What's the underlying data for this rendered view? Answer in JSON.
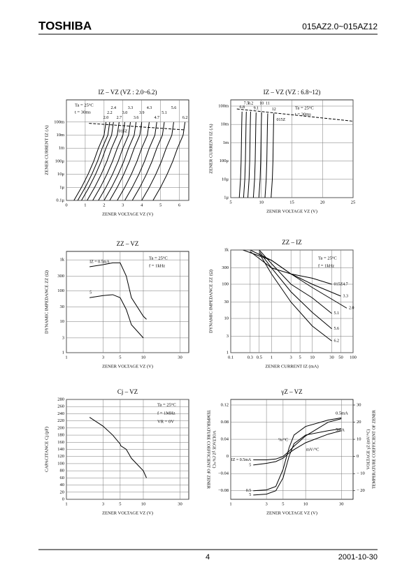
{
  "header": {
    "brand": "TOSHIBA",
    "model": "015AZ2.0~015AZ12"
  },
  "footer": {
    "page": "4",
    "date": "2001-10-30"
  },
  "chart_data": [
    {
      "type": "line",
      "title": "IZ – VZ  (VZ : 2.0~6.2)",
      "xlabel": "ZENER VOLTAGE  VZ  (V)",
      "ylabel": "ZENER CURRENT  IZ  (A)",
      "xlim": [
        0,
        6.5
      ],
      "ylim": [
        1e-07,
        5
      ],
      "ylog": true,
      "grid": true,
      "color": "#000000",
      "xticks": [
        0,
        1,
        2,
        3,
        4,
        5,
        6
      ],
      "yticks": [
        {
          "value": 1e-07,
          "label": "0.1μ"
        },
        {
          "value": 1e-06,
          "label": "1μ"
        },
        {
          "value": 1e-05,
          "label": "10μ"
        },
        {
          "value": 0.0001,
          "label": "100μ"
        },
        {
          "value": 0.001,
          "label": "1m"
        },
        {
          "value": 0.01,
          "label": "10m"
        },
        {
          "value": 0.1,
          "label": "100m"
        }
      ],
      "notes": [
        "Ta = 25°C",
        "t = 30ms"
      ],
      "series": [
        {
          "name": "2.0",
          "x": [
            0.4,
            0.8,
            1.15,
            1.45,
            1.7,
            2.0,
            2.1
          ],
          "values": [
            1e-07,
            1e-06,
            1e-05,
            0.0001,
            0.001,
            0.01,
            0.1
          ]
        },
        {
          "name": "2.2",
          "x": [
            0.6,
            1.0,
            1.35,
            1.65,
            1.9,
            2.2,
            2.3
          ],
          "values": [
            1e-07,
            1e-06,
            1e-05,
            0.0001,
            0.001,
            0.01,
            0.1
          ]
        },
        {
          "name": "2.4",
          "x": [
            0.8,
            1.2,
            1.55,
            1.85,
            2.1,
            2.4,
            2.5
          ],
          "values": [
            1e-07,
            1e-06,
            1e-05,
            0.0001,
            0.001,
            0.01,
            0.1
          ]
        },
        {
          "name": "2.7",
          "x": [
            1.1,
            1.5,
            1.85,
            2.15,
            2.4,
            2.7,
            2.8
          ],
          "values": [
            1e-07,
            1e-06,
            1e-05,
            0.0001,
            0.001,
            0.01,
            0.1
          ]
        },
        {
          "name": "3.0",
          "x": [
            1.4,
            1.8,
            2.15,
            2.45,
            2.7,
            3.0,
            3.1
          ],
          "values": [
            1e-07,
            1e-06,
            1e-05,
            0.0001,
            0.001,
            0.01,
            0.1
          ]
        },
        {
          "name": "3.3",
          "x": [
            1.7,
            2.1,
            2.45,
            2.75,
            3.0,
            3.3,
            3.4
          ],
          "values": [
            1e-07,
            1e-06,
            1e-05,
            0.0001,
            0.001,
            0.01,
            0.1
          ]
        },
        {
          "name": "3.6",
          "x": [
            2.0,
            2.4,
            2.75,
            3.05,
            3.3,
            3.6,
            3.7
          ],
          "values": [
            1e-07,
            1e-06,
            1e-05,
            0.0001,
            0.001,
            0.01,
            0.1
          ]
        },
        {
          "name": "3.9",
          "x": [
            2.3,
            2.7,
            3.05,
            3.35,
            3.6,
            3.9,
            4.0
          ],
          "values": [
            1e-07,
            1e-06,
            1e-05,
            0.0001,
            0.001,
            0.01,
            0.1
          ]
        },
        {
          "name": "4.3",
          "x": [
            2.7,
            3.1,
            3.45,
            3.75,
            4.0,
            4.3,
            4.4
          ],
          "values": [
            1e-07,
            1e-06,
            1e-05,
            0.0001,
            0.001,
            0.01,
            0.1
          ]
        },
        {
          "name": "4.7",
          "x": [
            3.1,
            3.5,
            3.85,
            4.15,
            4.4,
            4.7,
            4.8
          ],
          "values": [
            1e-07,
            1e-06,
            1e-05,
            0.0001,
            0.001,
            0.01,
            0.1
          ]
        },
        {
          "name": "5.1",
          "x": [
            3.5,
            3.9,
            4.25,
            4.55,
            4.8,
            5.1,
            5.2
          ],
          "values": [
            1e-07,
            1e-06,
            1e-05,
            0.0001,
            0.001,
            0.01,
            0.1
          ]
        },
        {
          "name": "5.6",
          "x": [
            4.0,
            4.4,
            4.75,
            5.05,
            5.3,
            5.6,
            5.7
          ],
          "values": [
            1e-07,
            1e-06,
            1e-05,
            0.0001,
            0.001,
            0.01,
            0.1
          ]
        },
        {
          "name": "6.2",
          "x": [
            4.6,
            5.0,
            5.35,
            5.65,
            5.9,
            6.2,
            6.3
          ],
          "values": [
            1e-07,
            1e-06,
            1e-05,
            0.0001,
            0.001,
            0.01,
            0.1
          ]
        },
        {
          "name": "015Z",
          "dashed": true,
          "x": [
            1.2,
            6.3
          ],
          "values": [
            0.08,
            0.025
          ]
        }
      ]
    },
    {
      "type": "line",
      "title": "IZ – VZ  (VZ : 6.8~12)",
      "xlabel": "ZENER VOLTAGE  VZ  (V)",
      "ylabel": "ZENER CURRENT  IZ  (A)",
      "xlim": [
        5,
        25
      ],
      "ylim": [
        1e-06,
        0.22
      ],
      "ylog": true,
      "grid": true,
      "color": "#000000",
      "xticks": [
        5,
        10,
        15,
        20,
        25
      ],
      "yticks": [
        {
          "value": 1e-06,
          "label": "1μ"
        },
        {
          "value": 1e-05,
          "label": "10μ"
        },
        {
          "value": 0.0001,
          "label": "100μ"
        },
        {
          "value": 0.001,
          "label": "1m"
        },
        {
          "value": 0.01,
          "label": "10m"
        },
        {
          "value": 0.1,
          "label": "100m"
        }
      ],
      "notes": [
        "Ta = 25°C",
        "t = 30ms"
      ],
      "series": [
        {
          "name": "6.8",
          "x": [
            6.4,
            6.6,
            6.7,
            6.75,
            6.8,
            6.85
          ],
          "values": [
            1e-06,
            1e-05,
            0.0001,
            0.001,
            0.01,
            0.05
          ]
        },
        {
          "name": "7.5",
          "x": [
            7.1,
            7.3,
            7.4,
            7.45,
            7.5,
            7.55
          ],
          "values": [
            1e-06,
            1e-05,
            0.0001,
            0.001,
            0.01,
            0.05
          ]
        },
        {
          "name": "8.2",
          "x": [
            7.8,
            8.0,
            8.1,
            8.15,
            8.2,
            8.25
          ],
          "values": [
            1e-06,
            1e-05,
            0.0001,
            0.001,
            0.01,
            0.05
          ]
        },
        {
          "name": "9.1",
          "x": [
            8.7,
            8.9,
            9.0,
            9.05,
            9.1,
            9.15
          ],
          "values": [
            1e-06,
            1e-05,
            0.0001,
            0.001,
            0.01,
            0.045
          ]
        },
        {
          "name": "10",
          "x": [
            9.6,
            9.8,
            9.9,
            9.95,
            10,
            10.05
          ],
          "values": [
            1e-06,
            1e-05,
            0.0001,
            0.001,
            0.01,
            0.045
          ]
        },
        {
          "name": "11",
          "x": [
            10.6,
            10.8,
            10.9,
            10.95,
            11,
            11.05
          ],
          "values": [
            1e-06,
            1e-05,
            0.0001,
            0.001,
            0.01,
            0.04
          ]
        },
        {
          "name": "12",
          "x": [
            11.6,
            11.8,
            11.9,
            11.95,
            12,
            12.05
          ],
          "values": [
            1e-06,
            1e-05,
            0.0001,
            0.001,
            0.01,
            0.04
          ]
        },
        {
          "name": "015Z",
          "dashed": true,
          "x": [
            6,
            25
          ],
          "values": [
            0.07,
            0.015
          ]
        }
      ]
    },
    {
      "type": "line",
      "title": "ZZ – VZ",
      "xlabel": "ZENER VOLTAGE  VZ  (V)",
      "ylabel": "DYNAMIC IMPEDANCE  ZZ  (Ω)",
      "xlim": [
        1,
        39
      ],
      "xlog": true,
      "ylim": [
        1,
        1880
      ],
      "ylog": true,
      "grid": true,
      "color": "#000000",
      "xticks": [
        1,
        3,
        5,
        10,
        30
      ],
      "yticks": [
        1,
        3,
        10,
        30,
        100,
        300,
        {
          "value": 1000,
          "label": "1k"
        }
      ],
      "notes": [
        "Ta = 25°C",
        "f = 1kHz"
      ],
      "series": [
        {
          "name": "IZ = 0.5mA",
          "x": [
            2,
            3,
            4,
            5,
            6,
            7,
            10,
            11
          ],
          "values": [
            600,
            700,
            800,
            800,
            300,
            60,
            15,
            12
          ]
        },
        {
          "name": "5",
          "x": [
            2,
            3,
            4,
            5,
            6,
            7,
            10
          ],
          "values": [
            60,
            70,
            75,
            60,
            25,
            8,
            3
          ]
        }
      ]
    },
    {
      "type": "line",
      "title": "ZZ – IZ",
      "xlabel": "ZENER CURRENT  IZ  (mA)",
      "ylabel": "DYNAMIC IMPEDANCE  ZZ  (Ω)",
      "xlim": [
        0.1,
        100
      ],
      "xlog": true,
      "ylim": [
        1,
        1000
      ],
      "ylog": true,
      "grid": true,
      "color": "#000000",
      "xticks": [
        0.1,
        0.3,
        0.5,
        1,
        3,
        5,
        10,
        30,
        50,
        100
      ],
      "yticks": [
        1,
        3,
        10,
        30,
        100,
        300,
        {
          "value": 1000,
          "label": "1k"
        }
      ],
      "notes": [
        "Ta = 25°C",
        "f = 1kHz"
      ],
      "series": [
        {
          "name": "015Z4.7",
          "x": [
            0.3,
            1,
            3,
            10,
            30
          ],
          "values": [
            900,
            300,
            200,
            150,
            100
          ]
        },
        {
          "name": "3.3",
          "x": [
            0.3,
            1,
            3,
            10,
            50
          ],
          "values": [
            1000,
            500,
            200,
            100,
            45
          ]
        },
        {
          "name": "2.0",
          "x": [
            0.2,
            1,
            3,
            10,
            70
          ],
          "values": [
            1000,
            500,
            200,
            80,
            20
          ]
        },
        {
          "name": "5.1",
          "x": [
            0.5,
            1,
            3,
            10,
            30
          ],
          "values": [
            1000,
            400,
            100,
            40,
            14
          ]
        },
        {
          "name": "5.6",
          "x": [
            0.5,
            1,
            3,
            10,
            30
          ],
          "values": [
            900,
            300,
            60,
            15,
            5
          ]
        },
        {
          "name": "6.2",
          "x": [
            0.5,
            1,
            3,
            10,
            30
          ],
          "values": [
            800,
            200,
            30,
            6,
            2.2
          ]
        }
      ]
    },
    {
      "type": "line",
      "title": "Cj – VZ",
      "xlabel": "ZENER VOLTAGE  VZ  (V)",
      "ylabel": "CAPACITANCE  Cj  (pF)",
      "xlim": [
        1,
        39
      ],
      "xlog": true,
      "ylim": [
        0,
        280
      ],
      "grid": true,
      "color": "#000000",
      "xticks": [
        1,
        3,
        5,
        10,
        30
      ],
      "yticks": [
        0,
        20,
        40,
        60,
        80,
        100,
        120,
        140,
        160,
        180,
        200,
        220,
        240,
        260,
        280
      ],
      "notes": [
        "Ta = 25°C",
        "f = 1MHz",
        "VR = 0V"
      ],
      "series": [
        {
          "x": [
            2,
            3,
            4,
            5,
            5.1,
            6,
            7,
            10,
            11
          ],
          "values": [
            230,
            205,
            180,
            155,
            150,
            140,
            115,
            80,
            60
          ]
        }
      ]
    },
    {
      "type": "line",
      "title": "γZ – VZ",
      "xlabel": "ZENER VOLTAGE  VZ  (V)",
      "ylabel": [
        "TEMPERATURE COEFFICIENT OF ZENER",
        "VOLTAGE  γZ  (%/°C)"
      ],
      "y2label": [
        "TEMPERATURE COEFFICIENT OF ZENER",
        "VOLTAGE  γZ  (mV/°C)"
      ],
      "xlim": [
        1,
        43
      ],
      "xlog": true,
      "ylim": [
        -0.1,
        0.133
      ],
      "y2lim": [
        -25,
        33.25
      ],
      "grid": true,
      "color": "#000000",
      "xticks": [
        1,
        3,
        5,
        10,
        30
      ],
      "yticks": [
        {
          "value": -0.08,
          "label": "−0.08"
        },
        {
          "value": -0.04,
          "label": "−0.04"
        },
        0,
        0.04,
        0.08,
        0.12
      ],
      "y2ticks": [
        {
          "value": -20,
          "label": "− 20"
        },
        {
          "value": -10,
          "label": "− 10"
        },
        0,
        10,
        20,
        30
      ],
      "notes": [
        "0.5mA",
        "5mA",
        "%/°C",
        "mV/°C"
      ],
      "series": [
        {
          "name": "0.5",
          "x": [
            2,
            3,
            4,
            5,
            6,
            7,
            10,
            20,
            30
          ],
          "values": [
            -0.08,
            -0.078,
            -0.07,
            -0.03,
            0.02,
            0.05,
            0.07,
            0.085,
            0.09
          ]
        },
        {
          "name": "5",
          "x": [
            2,
            3,
            4,
            5,
            6,
            7,
            10,
            20,
            30
          ],
          "values": [
            -0.09,
            -0.088,
            -0.08,
            -0.05,
            0,
            0.03,
            0.05,
            0.06,
            0.065
          ]
        },
        {
          "name": "IZ = 0.5mA",
          "axis": "y2",
          "x": [
            2,
            3,
            4,
            5,
            6,
            7,
            10,
            20,
            30
          ],
          "values": [
            -2,
            -2,
            -1.5,
            0,
            3,
            6,
            12,
            20,
            22
          ]
        },
        {
          "name": "5",
          "axis": "y2",
          "x": [
            2,
            3,
            4,
            5,
            6,
            7,
            10,
            20,
            30
          ],
          "values": [
            -5,
            -4,
            -3,
            -1,
            2,
            4,
            8,
            13,
            15
          ]
        }
      ]
    }
  ]
}
